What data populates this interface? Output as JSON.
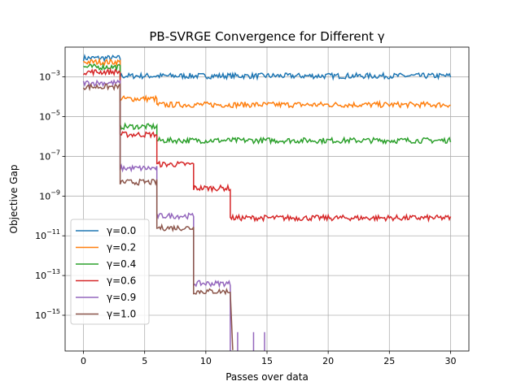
{
  "chart_data": {
    "type": "line",
    "title": "PB-SVRGE Convergence for Different γ",
    "xlabel": "Passes over data",
    "ylabel": "Objective Gap",
    "x_ticks": [
      0,
      5,
      10,
      15,
      20,
      25,
      30
    ],
    "y_scale": "log",
    "y_tick_exponents": [
      -15,
      -13,
      -11,
      -9,
      -7,
      -5,
      -3
    ],
    "xlim": [
      -1.5,
      31.5
    ],
    "ylim_log10": [
      -16.8,
      -1.5
    ],
    "grid": true,
    "legend_position": "lower-left",
    "noise": "small fluctuations around each plateau",
    "series": [
      {
        "name": "γ=0.0",
        "color": "#1f77b4",
        "x": [
          0,
          3,
          3,
          30
        ],
        "log10_y": [
          -2.05,
          -2.05,
          -2.95,
          -2.95
        ]
      },
      {
        "name": "γ=0.2",
        "color": "#ff7f0e",
        "x": [
          0,
          3,
          3,
          6,
          6,
          30
        ],
        "log10_y": [
          -2.25,
          -2.25,
          -4.1,
          -4.1,
          -4.4,
          -4.4
        ]
      },
      {
        "name": "γ=0.4",
        "color": "#2ca02c",
        "x": [
          0,
          3,
          3,
          6,
          6,
          30
        ],
        "log10_y": [
          -2.5,
          -2.5,
          -5.5,
          -5.5,
          -6.2,
          -6.2
        ]
      },
      {
        "name": "γ=0.6",
        "color": "#d62728",
        "x": [
          0,
          3,
          3,
          6,
          6,
          9,
          9,
          12,
          12,
          30
        ],
        "log10_y": [
          -2.75,
          -2.75,
          -5.9,
          -5.9,
          -7.4,
          -7.4,
          -8.6,
          -8.6,
          -10.1,
          -10.1
        ]
      },
      {
        "name": "γ=0.9",
        "color": "#9467bd",
        "x": [
          0,
          3,
          3,
          6,
          6,
          9,
          9,
          12,
          12
        ],
        "log10_y": [
          -3.3,
          -3.3,
          -7.6,
          -7.6,
          -10.0,
          -10.0,
          -13.4,
          -13.4,
          -16.8
        ],
        "spikes_x": [
          12.6,
          13.9,
          14.8
        ]
      },
      {
        "name": "γ=1.0",
        "color": "#8c564b",
        "x": [
          0,
          3,
          3,
          6,
          6,
          9,
          9,
          12,
          12.2
        ],
        "log10_y": [
          -3.5,
          -3.5,
          -8.3,
          -8.3,
          -10.6,
          -10.6,
          -13.8,
          -13.8,
          -16.8
        ]
      }
    ]
  }
}
